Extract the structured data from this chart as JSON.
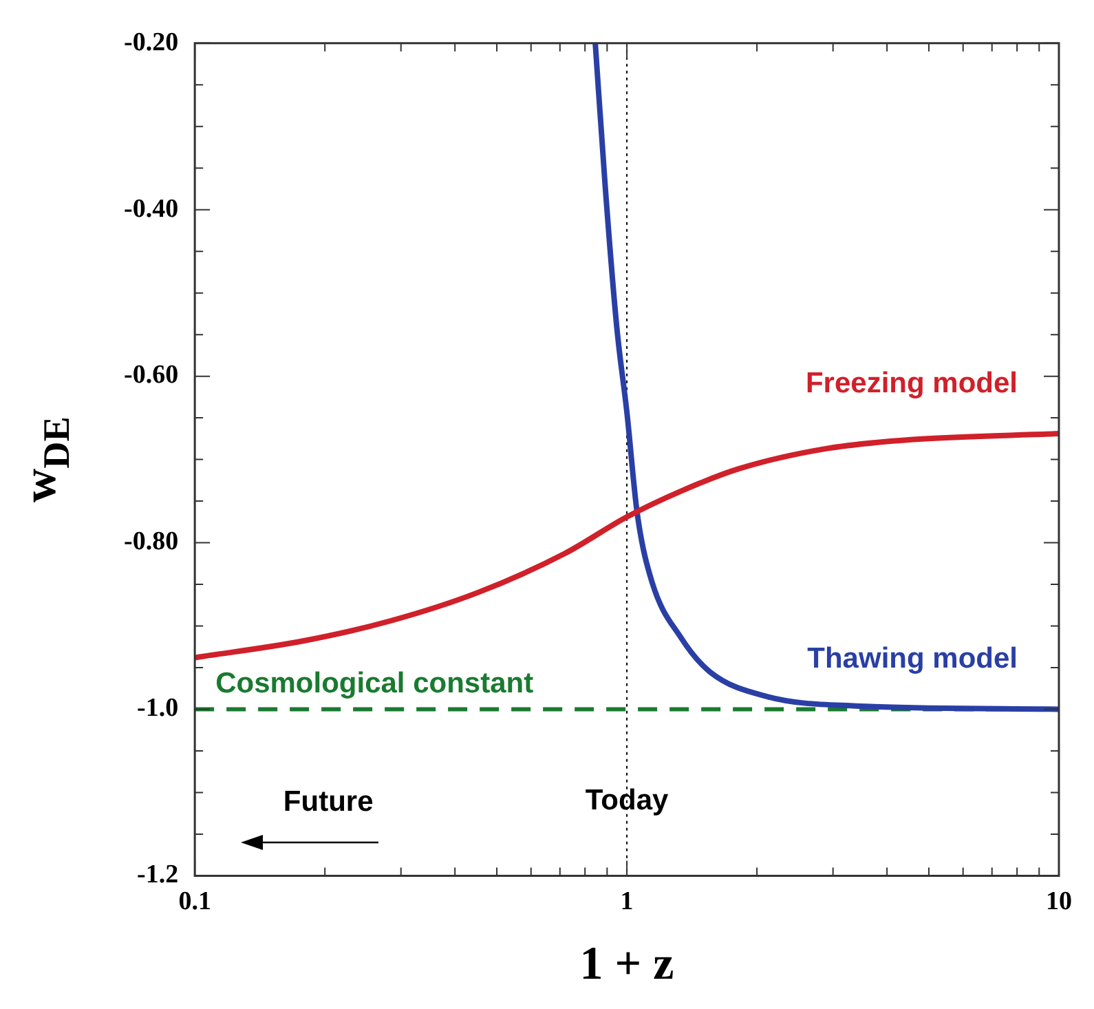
{
  "chart_data": {
    "type": "line",
    "xlabel": "1 + z",
    "ylabel": "w$_{DE}$",
    "log": "x",
    "xlim": [
      0.1,
      10
    ],
    "ylim": [
      -1.2,
      -0.2
    ],
    "xticks": [
      0.1,
      {
        "value": 0.2,
        "label": null
      },
      {
        "value": 0.3,
        "label": null
      },
      {
        "value": 0.4,
        "label": null
      },
      {
        "value": 0.5,
        "label": null
      },
      {
        "value": 0.6,
        "label": null
      },
      {
        "value": 0.7,
        "label": null
      },
      {
        "value": 0.8,
        "label": null
      },
      {
        "value": 0.9,
        "label": null
      },
      1,
      {
        "value": 2,
        "label": null
      },
      {
        "value": 3,
        "label": null
      },
      {
        "value": 4,
        "label": null
      },
      {
        "value": 5,
        "label": null
      },
      {
        "value": 6,
        "label": null
      },
      {
        "value": 7,
        "label": null
      },
      {
        "value": 8,
        "label": null
      },
      {
        "value": 9,
        "label": null
      },
      10
    ],
    "yticks": [
      {
        "value": -0.2,
        "label": "-0.20"
      },
      {
        "value": -0.25,
        "label": null
      },
      {
        "value": -0.3,
        "label": null
      },
      {
        "value": -0.35,
        "label": null
      },
      {
        "value": -0.4,
        "label": "-0.40"
      },
      {
        "value": -0.45,
        "label": null
      },
      {
        "value": -0.5,
        "label": null
      },
      {
        "value": -0.55,
        "label": null
      },
      {
        "value": -0.6,
        "label": "-0.60"
      },
      {
        "value": -0.65,
        "label": null
      },
      {
        "value": -0.7,
        "label": null
      },
      {
        "value": -0.75,
        "label": null
      },
      {
        "value": -0.8,
        "label": "-0.80"
      },
      {
        "value": -0.85,
        "label": null
      },
      {
        "value": -0.9,
        "label": null
      },
      {
        "value": -0.95,
        "label": null
      },
      {
        "value": -1.0,
        "label": "-1.0"
      },
      {
        "value": -1.05,
        "label": null
      },
      {
        "value": -1.1,
        "label": null
      },
      {
        "value": -1.15,
        "label": null
      },
      {
        "value": -1.2,
        "label": "-1.2"
      }
    ],
    "grid": false,
    "legend": false,
    "marker": "none",
    "line_style": "solid",
    "series": [
      {
        "name": "Freezing model",
        "color": "#d0202a",
        "x": [
          0.1,
          0.178,
          0.283,
          0.451,
          0.718,
          1,
          1.334,
          1.82,
          2.89,
          4.6,
          10
        ],
        "values": [
          -0.938,
          -0.918,
          -0.894,
          -0.86,
          -0.813,
          -0.769,
          -0.738,
          -0.711,
          -0.687,
          -0.676,
          -0.669
        ]
      },
      {
        "name": "Thawing model",
        "color": "#2a3fa5",
        "x": [
          0.845,
          0.891,
          0.948,
          1,
          1.057,
          1.143,
          1.334,
          1.556,
          2.12,
          3.38,
          10
        ],
        "values": [
          -0.2,
          -0.372,
          -0.542,
          -0.643,
          -0.765,
          -0.847,
          -0.914,
          -0.955,
          -0.985,
          -0.996,
          -1.0
        ]
      }
    ],
    "ref_lines": [
      {
        "axis": "y",
        "value": -1.0,
        "label": "Cosmological constant",
        "color": "#1a7a30",
        "line_style": "dashed"
      },
      {
        "axis": "x",
        "value": 1,
        "label": "Today",
        "color": "#000000",
        "line_style": "dotted"
      }
    ],
    "annotations": [
      "Future"
    ]
  }
}
